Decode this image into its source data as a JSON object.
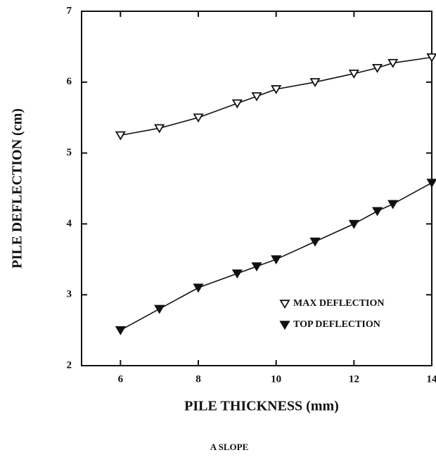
{
  "chart_data": {
    "type": "line",
    "x_label": "PILE THICKNESS (mm)",
    "y_label": "PILE DEFLECTION (cm)",
    "caption": "A SLOPE",
    "x": [
      6,
      7,
      8,
      9,
      9.5,
      10,
      11,
      12,
      12.6,
      13,
      14
    ],
    "series": [
      {
        "name": "MAX DEFLECTION",
        "color": "#111111",
        "marker": "open-triangle-down",
        "values": [
          5.25,
          5.35,
          5.5,
          5.7,
          5.8,
          5.9,
          6.0,
          6.12,
          6.2,
          6.27,
          6.35
        ]
      },
      {
        "name": "TOP DEFLECTION",
        "color": "#111111",
        "marker": "filled-triangle-down",
        "values": [
          2.5,
          2.8,
          3.1,
          3.3,
          3.4,
          3.5,
          3.75,
          4.0,
          4.18,
          4.28,
          4.58
        ]
      }
    ],
    "xlim": [
      5,
      14
    ],
    "ylim": [
      2,
      7
    ],
    "xticks": [
      6,
      8,
      10,
      12,
      14
    ],
    "yticks": [
      2,
      3,
      4,
      5,
      6,
      7
    ],
    "legend": "lower right"
  }
}
